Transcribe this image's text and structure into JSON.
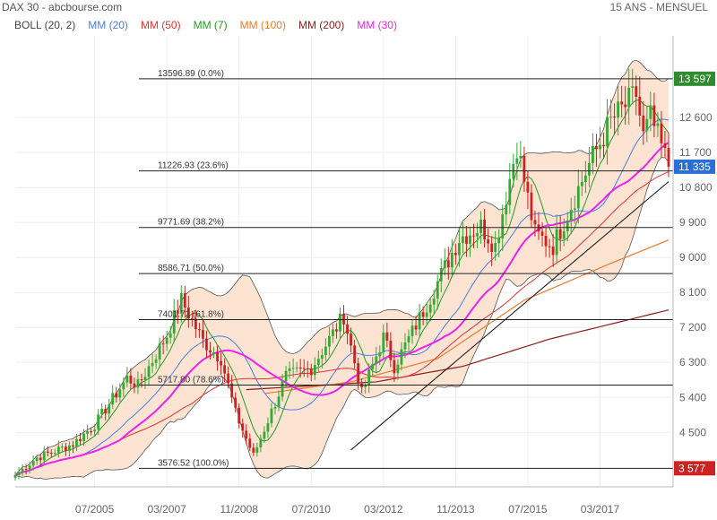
{
  "header": {
    "source": "DAX 30 - abcbourse.com",
    "period": "15 ANS - MENSUEL"
  },
  "legend": [
    {
      "label": "BOLL (20, 2)",
      "color": "#444444"
    },
    {
      "label": "MM (20)",
      "color": "#4a7de8"
    },
    {
      "label": "MM (50)",
      "color": "#e83030"
    },
    {
      "label": "MM (7)",
      "color": "#229922"
    },
    {
      "label": "MM (100)",
      "color": "#f07a28"
    },
    {
      "label": "MM (200)",
      "color": "#8b1c1c"
    },
    {
      "label": "MM (30)",
      "color": "#ee22ee"
    }
  ],
  "colors": {
    "candle_up": "#33aa33",
    "candle_down": "#cc2222",
    "band_fill": "#fde4d2",
    "band_line": "#555555",
    "price_badge_up": "#2e8b2e",
    "price_badge_down": "#cc2222",
    "grid": "#eeeeee"
  },
  "chart_data": {
    "type": "candlestick",
    "x_range": [
      "2003-09",
      "2018-10"
    ],
    "ylim": [
      3100,
      14700
    ],
    "y_ticks": [
      "4 500",
      "5 400",
      "6 300",
      "7 200",
      "8 100",
      "9 000",
      "9 900",
      "10 800",
      "11 700",
      "12 600"
    ],
    "y_tick_values": [
      4500,
      5400,
      6300,
      7200,
      8100,
      9000,
      9900,
      10800,
      11700,
      12600
    ],
    "x_ticks": [
      "07/2005",
      "03/2007",
      "11/2008",
      "07/2010",
      "03/2012",
      "11/2013",
      "07/2015",
      "03/2017"
    ],
    "x_tick_dates": [
      "2005-07",
      "2007-03",
      "2008-11",
      "2010-07",
      "2012-03",
      "2013-11",
      "2015-07",
      "2017-03"
    ],
    "price_badges": [
      {
        "label": "13 597",
        "value": 13597,
        "kind": "up"
      },
      {
        "label": "11 335",
        "value": 11335,
        "kind": "blue"
      },
      {
        "label": "3 577",
        "value": 3577,
        "kind": "down"
      }
    ],
    "fibonacci_levels": [
      {
        "label": "13596.89  (0.0%)",
        "value": 13597
      },
      {
        "label": "11226.93  (23.6%)",
        "value": 11227
      },
      {
        "label": "9771.69  (38.2%)",
        "value": 9772
      },
      {
        "label": "8586.71  (50.0%)",
        "value": 8587
      },
      {
        "label": "7401.72  (61.8%)",
        "value": 7402
      },
      {
        "label": "5717.80  (78.6%)",
        "value": 5718
      },
      {
        "label": "3576.52  (100.0%)",
        "value": 3577
      }
    ],
    "trendlines": [
      {
        "from": [
          "2011-06",
          4050
        ],
        "to": [
          "2018-10",
          10950
        ]
      }
    ],
    "close_anchors": [
      [
        "2003-09",
        3400
      ],
      [
        "2004-03",
        3850
      ],
      [
        "2005-01",
        4200
      ],
      [
        "2005-07",
        4700
      ],
      [
        "2006-04",
        5900
      ],
      [
        "2006-07",
        5700
      ],
      [
        "2007-03",
        7000
      ],
      [
        "2007-07",
        7900
      ],
      [
        "2008-01",
        6850
      ],
      [
        "2008-06",
        6400
      ],
      [
        "2008-10",
        5000
      ],
      [
        "2009-03",
        3900
      ],
      [
        "2009-12",
        5950
      ],
      [
        "2010-07",
        6150
      ],
      [
        "2011-04",
        7500
      ],
      [
        "2011-09",
        5500
      ],
      [
        "2012-03",
        6950
      ],
      [
        "2012-06",
        6200
      ],
      [
        "2013-03",
        7800
      ],
      [
        "2013-12",
        9500
      ],
      [
        "2014-06",
        9800
      ],
      [
        "2014-10",
        9300
      ],
      [
        "2015-04",
        11900
      ],
      [
        "2015-09",
        9600
      ],
      [
        "2016-02",
        9300
      ],
      [
        "2016-12",
        11400
      ],
      [
        "2017-06",
        12500
      ],
      [
        "2018-01",
        13200
      ],
      [
        "2018-03",
        12100
      ],
      [
        "2018-05",
        12600
      ],
      [
        "2018-10",
        11335
      ]
    ],
    "ma_anchors": {
      "MM (200)": [
        [
          "2009-01",
          5600
        ],
        [
          "2012-01",
          5800
        ],
        [
          "2014-01",
          6200
        ],
        [
          "2016-01",
          6900
        ],
        [
          "2018-10",
          7650
        ]
      ],
      "MM (100)": [
        [
          "2009-06",
          5500
        ],
        [
          "2011-06",
          5800
        ],
        [
          "2013-06",
          6400
        ],
        [
          "2015-06",
          7900
        ],
        [
          "2017-06",
          8850
        ],
        [
          "2018-10",
          9450
        ]
      ]
    }
  }
}
